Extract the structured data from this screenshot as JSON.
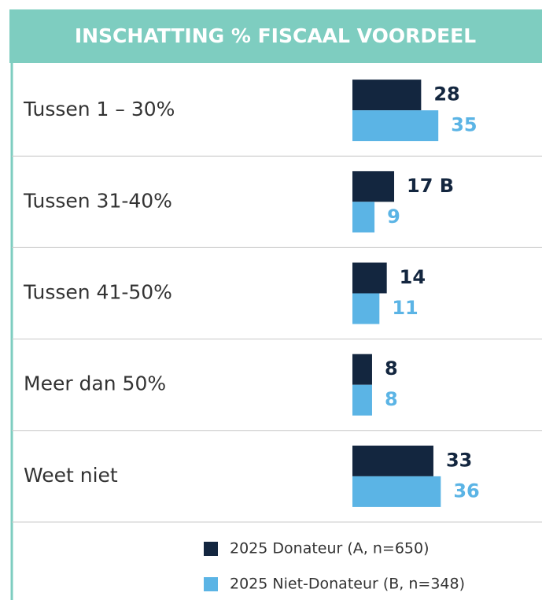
{
  "chart_data": {
    "type": "bar",
    "orientation": "horizontal",
    "title": "INSCHATTING % FISCAAL VOORDEEL",
    "categories": [
      "Tussen 1 – 30%",
      "Tussen 31-40%",
      "Tussen 41-50%",
      "Meer dan 50%",
      "Weet niet"
    ],
    "series": [
      {
        "name": "2025 Donateur (A, n=650)",
        "color": "#13263f",
        "values": [
          28,
          17,
          14,
          8,
          33
        ],
        "value_labels": [
          "28",
          "17 B",
          "14",
          "8",
          "33"
        ]
      },
      {
        "name": "2025 Niet-Donateur (B, n=348)",
        "color": "#5bb4e5",
        "values": [
          35,
          9,
          11,
          8,
          36
        ]
      }
    ]
  }
}
